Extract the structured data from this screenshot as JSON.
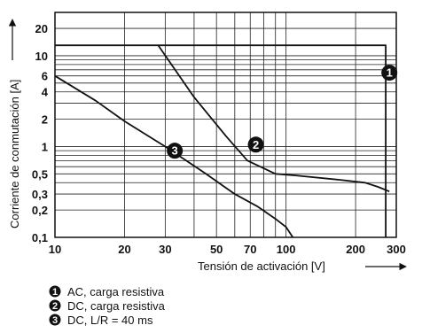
{
  "chart_data": {
    "type": "line",
    "xlabel": "Tensión de activación [V]",
    "ylabel": "Corriente de conmutación [A]",
    "x_scale": "log",
    "y_scale": "log",
    "xlim": [
      10,
      300
    ],
    "ylim": [
      0.1,
      30
    ],
    "x_ticks": [
      {
        "value": 10,
        "label": "10"
      },
      {
        "value": 20,
        "label": "20"
      },
      {
        "value": 30,
        "label": "30"
      },
      {
        "value": 50,
        "label": "50"
      },
      {
        "value": 70,
        "label": "70"
      },
      {
        "value": 100,
        "label": "100"
      },
      {
        "value": 200,
        "label": "200"
      },
      {
        "value": 300,
        "label": "300"
      }
    ],
    "y_ticks": [
      {
        "value": 0.1,
        "label": "0,1"
      },
      {
        "value": 0.2,
        "label": "0,2"
      },
      {
        "value": 0.3,
        "label": "0,3"
      },
      {
        "value": 0.5,
        "label": "0,5"
      },
      {
        "value": 1,
        "label": "1"
      },
      {
        "value": 2,
        "label": "2"
      },
      {
        "value": 4,
        "label": "4"
      },
      {
        "value": 6,
        "label": "6"
      },
      {
        "value": 10,
        "label": "10"
      },
      {
        "value": 20,
        "label": "20"
      }
    ],
    "x_grid": [
      10,
      20,
      30,
      40,
      50,
      60,
      70,
      80,
      90,
      100,
      200,
      300
    ],
    "y_grid": [
      0.1,
      0.2,
      0.3,
      0.4,
      0.5,
      0.6,
      0.7,
      0.8,
      0.9,
      1,
      2,
      3,
      4,
      5,
      6,
      7,
      8,
      9,
      10,
      20
    ],
    "grid": true,
    "legend_position": "bottom-left",
    "series": [
      {
        "id": "1",
        "name": "AC, carga resistiva",
        "color": "#111111",
        "x": [
          10,
          27,
          52,
          100,
          270,
          270
        ],
        "y": [
          13,
          13,
          13,
          13,
          13,
          0.1
        ],
        "marker_at": [
          280,
          6.5
        ]
      },
      {
        "id": "2",
        "name": "DC, carga resistiva",
        "color": "#111111",
        "x": [
          28,
          40,
          55,
          68,
          90,
          110,
          170,
          220,
          250,
          280
        ],
        "y": [
          13,
          3.5,
          1.3,
          0.7,
          0.5,
          0.48,
          0.43,
          0.4,
          0.36,
          0.32
        ],
        "marker_at": [
          74,
          1.05
        ]
      },
      {
        "id": "3",
        "name": "DC, L/R = 40 ms",
        "color": "#111111",
        "x": [
          10,
          15,
          20,
          30,
          45,
          60,
          75,
          90,
          100,
          107
        ],
        "y": [
          6,
          3.2,
          1.9,
          1,
          0.5,
          0.3,
          0.22,
          0.16,
          0.13,
          0.1
        ],
        "marker_at": [
          33,
          0.9
        ]
      }
    ]
  }
}
